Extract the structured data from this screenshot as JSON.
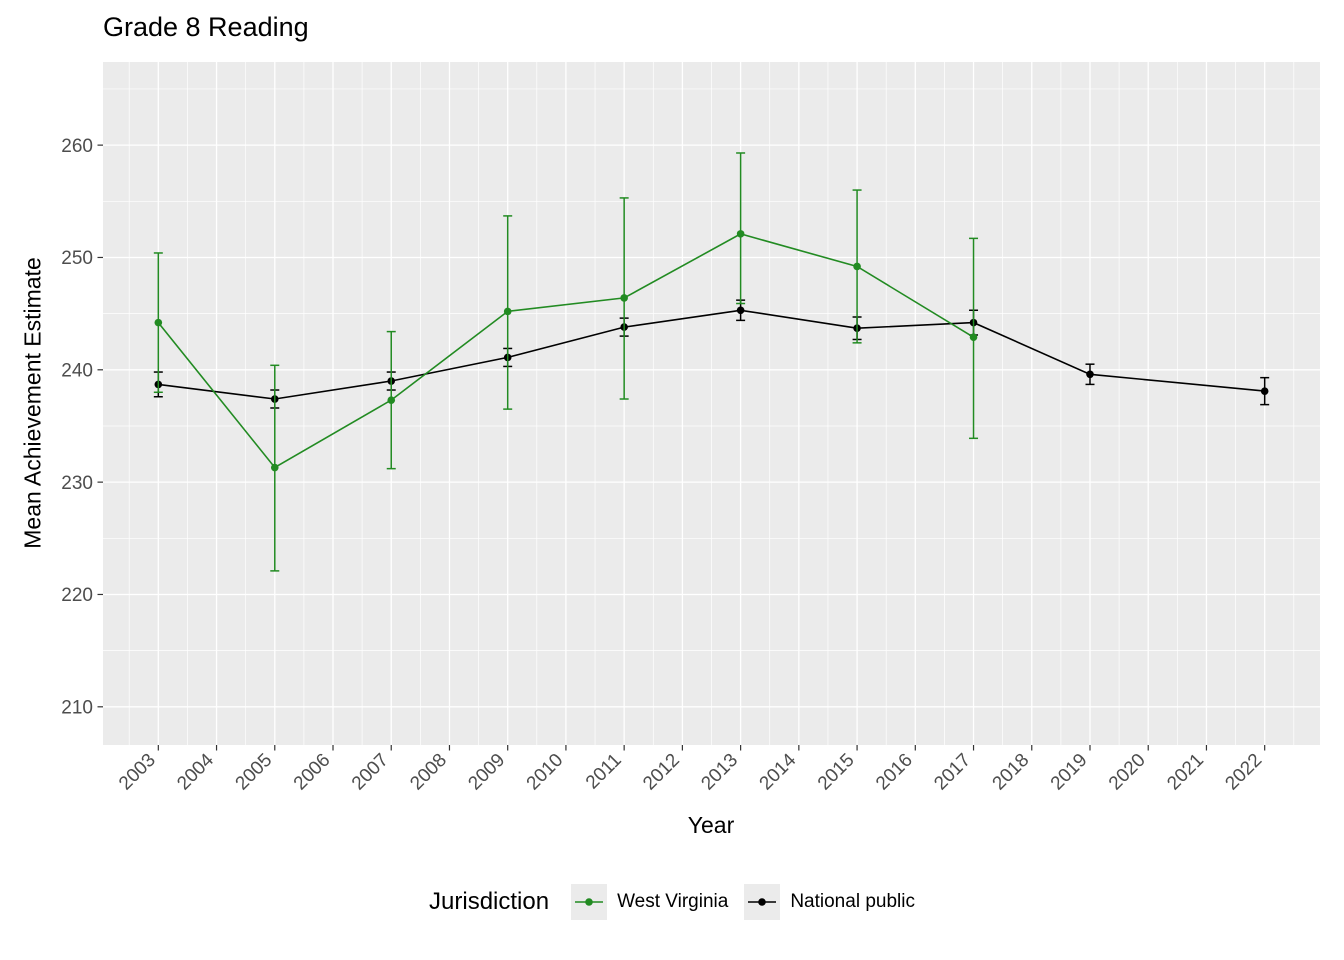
{
  "chart_data": {
    "type": "line",
    "title": "Grade 8 Reading",
    "xlabel": "Year",
    "ylabel": "Mean Achievement Estimate",
    "panel_bg": "#EBEBEB",
    "grid_color": "#FFFFFF",
    "tick_label_color": "#4D4D4D",
    "xlim": [
      2002.05,
      2022.95
    ],
    "ylim": [
      206.6,
      267.4
    ],
    "x_ticks": [
      2003,
      2004,
      2005,
      2006,
      2007,
      2008,
      2009,
      2010,
      2011,
      2012,
      2013,
      2014,
      2015,
      2016,
      2017,
      2018,
      2019,
      2020,
      2021,
      2022
    ],
    "y_ticks": [
      210,
      220,
      230,
      240,
      250,
      260
    ],
    "legend": {
      "title": "Jurisdiction",
      "position": "bottom",
      "items": [
        {
          "label": "West Virginia",
          "color": "#228B22"
        },
        {
          "label": "National public",
          "color": "#000000"
        }
      ]
    },
    "series": [
      {
        "name": "National public",
        "color": "#000000",
        "x": [
          2003,
          2005,
          2007,
          2009,
          2011,
          2013,
          2015,
          2017,
          2019,
          2022
        ],
        "y": [
          238.7,
          237.4,
          239.0,
          241.1,
          243.8,
          245.3,
          243.7,
          244.2,
          239.6,
          238.1
        ],
        "y_lo": [
          237.6,
          236.6,
          238.2,
          240.3,
          243.0,
          244.4,
          242.7,
          243.1,
          238.7,
          236.9
        ],
        "y_hi": [
          239.8,
          238.2,
          239.8,
          241.9,
          244.6,
          246.2,
          244.7,
          245.3,
          240.5,
          239.3
        ]
      },
      {
        "name": "West Virginia",
        "color": "#228B22",
        "x": [
          2003,
          2005,
          2007,
          2009,
          2011,
          2013,
          2015,
          2017
        ],
        "y": [
          244.2,
          231.3,
          237.3,
          245.2,
          246.4,
          252.1,
          249.2,
          242.9
        ],
        "y_lo": [
          238.0,
          222.1,
          231.2,
          236.5,
          237.4,
          245.9,
          242.4,
          233.9
        ],
        "y_hi": [
          250.4,
          240.4,
          243.4,
          253.7,
          255.3,
          259.3,
          256.0,
          251.7
        ]
      }
    ]
  }
}
